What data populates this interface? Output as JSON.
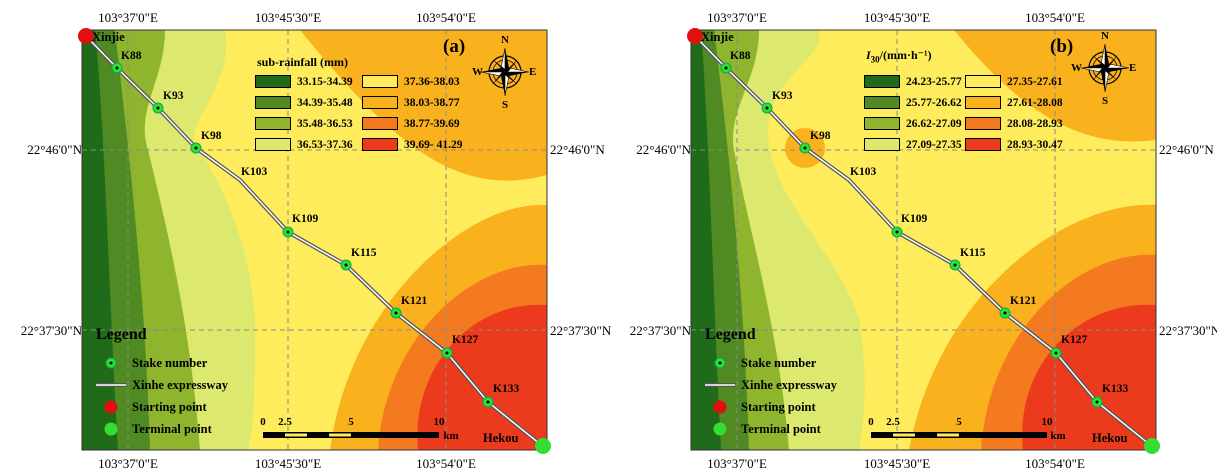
{
  "panels": [
    {
      "letter": "(a)",
      "legend_title": "sub-rainfall (mm)",
      "classes": [
        {
          "range": "33.15-34.39",
          "color": "#1f6b1a"
        },
        {
          "range": "34.39-35.48",
          "color": "#4f8a22"
        },
        {
          "range": "35.48-36.53",
          "color": "#8fb52e"
        },
        {
          "range": "36.53-37.36",
          "color": "#dce86e"
        },
        {
          "range": "37.36-38.03",
          "color": "#ffec5c"
        },
        {
          "range": "38.03-38.77",
          "color": "#f9b21e"
        },
        {
          "range": "38.77-39.69",
          "color": "#f37a1e"
        },
        {
          "range": "39.69- 41.29",
          "color": "#ec3b1c"
        }
      ]
    },
    {
      "letter": "(b)",
      "legend_title_main": "I",
      "legend_title_sub": "30",
      "legend_title_rest": "/(mm·h⁻¹)",
      "classes": [
        {
          "range": "24.23-25.77",
          "color": "#1f6b1a"
        },
        {
          "range": "25.77-26.62",
          "color": "#4f8a22"
        },
        {
          "range": "26.62-27.09",
          "color": "#8fb52e"
        },
        {
          "range": "27.09-27.35",
          "color": "#dce86e"
        },
        {
          "range": "27.35-27.61",
          "color": "#ffec5c"
        },
        {
          "range": "27.61-28.08",
          "color": "#f9b21e"
        },
        {
          "range": "28.08-28.93",
          "color": "#f37a1e"
        },
        {
          "range": "28.93-30.47",
          "color": "#ec3b1c"
        }
      ]
    }
  ],
  "longitudes": [
    "103°37'0\"E",
    "103°45'30\"E",
    "103°54'0\"E"
  ],
  "latitudes": [
    "22°46'0\"N",
    "22°37'30\"N"
  ],
  "stakes": [
    "K88",
    "K93",
    "K98",
    "K103",
    "K109",
    "K115",
    "K121",
    "K127",
    "K133"
  ],
  "places": {
    "start": "Xinjie",
    "end": "Hekou"
  },
  "legend": {
    "title": "Legend",
    "stake": "Stake number",
    "road": "Xinhe expressway",
    "start": "Starting point",
    "end": "Terminal point"
  },
  "compass": {
    "n": "N",
    "s": "S",
    "e": "E",
    "w": "W"
  },
  "scale": {
    "ticks": [
      "0",
      "2.5",
      "5",
      "10"
    ],
    "unit": "km"
  }
}
